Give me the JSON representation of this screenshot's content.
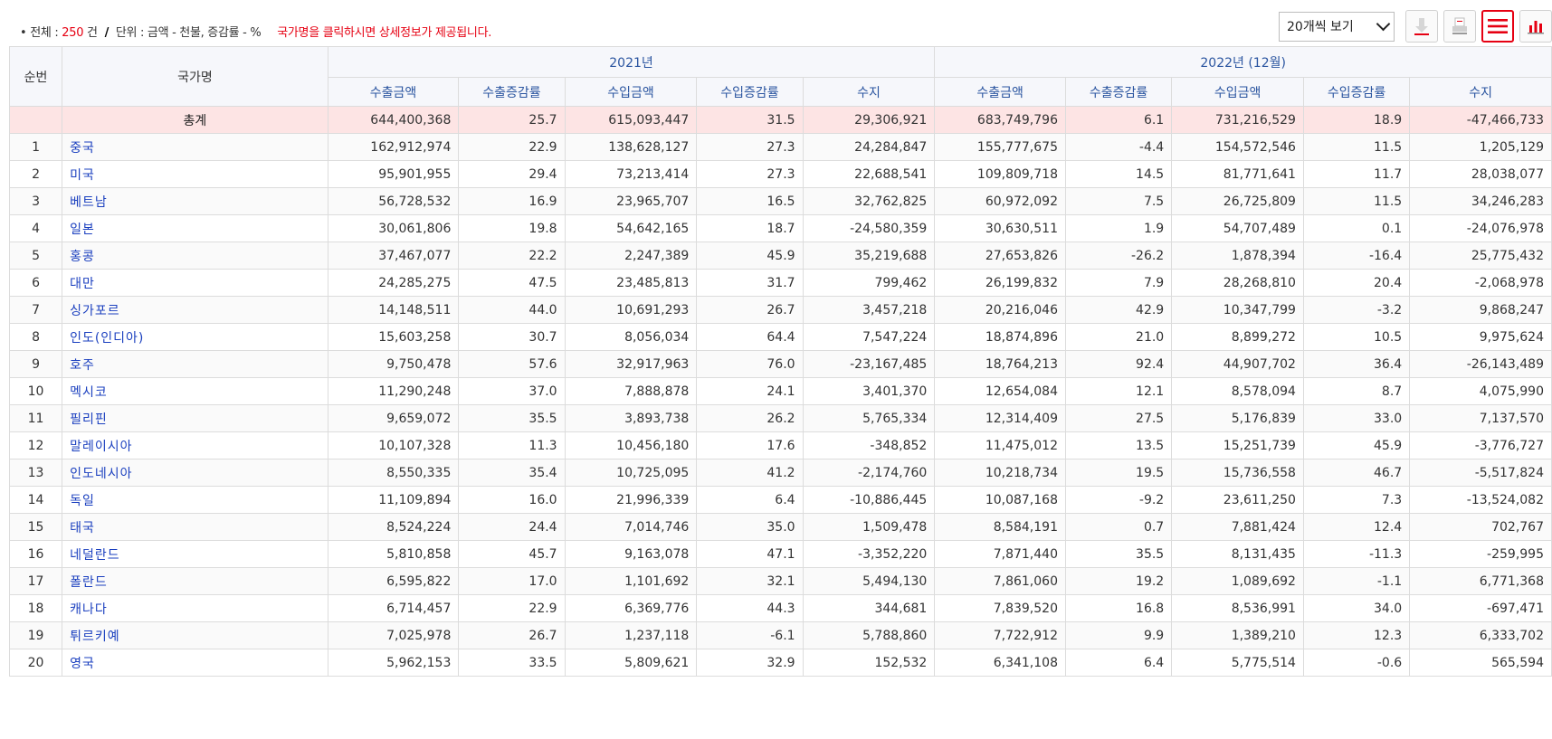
{
  "summary": {
    "bullet": "•",
    "total_label": "전체 : ",
    "total_count": "250",
    "count_unit": " 건",
    "slash": "/",
    "unit_label": "단위 : 금액 - 천불, 증감률 - %",
    "notice": "국가명을 클릭하시면 상세정보가 제공됩니다."
  },
  "controls": {
    "page_size": "20개씩 보기",
    "icons": [
      "download-icon",
      "print-icon",
      "list-view-icon",
      "chart-view-icon"
    ],
    "accent_color": "#e60012"
  },
  "table": {
    "headers": {
      "rank": "순번",
      "country": "국가명",
      "year1": "2021년",
      "year2": "2022년 (12월)",
      "sub": [
        "수출금액",
        "수출증감률",
        "수입금액",
        "수입증감률",
        "수지"
      ]
    },
    "total": {
      "label": "총계",
      "values": [
        "644,400,368",
        "25.7",
        "615,093,447",
        "31.5",
        "29,306,921",
        "683,749,796",
        "6.1",
        "731,216,529",
        "18.9",
        "-47,466,733"
      ]
    },
    "rows": [
      {
        "rank": "1",
        "country": "중국",
        "values": [
          "162,912,974",
          "22.9",
          "138,628,127",
          "27.3",
          "24,284,847",
          "155,777,675",
          "-4.4",
          "154,572,546",
          "11.5",
          "1,205,129"
        ]
      },
      {
        "rank": "2",
        "country": "미국",
        "values": [
          "95,901,955",
          "29.4",
          "73,213,414",
          "27.3",
          "22,688,541",
          "109,809,718",
          "14.5",
          "81,771,641",
          "11.7",
          "28,038,077"
        ]
      },
      {
        "rank": "3",
        "country": "베트남",
        "values": [
          "56,728,532",
          "16.9",
          "23,965,707",
          "16.5",
          "32,762,825",
          "60,972,092",
          "7.5",
          "26,725,809",
          "11.5",
          "34,246,283"
        ]
      },
      {
        "rank": "4",
        "country": "일본",
        "values": [
          "30,061,806",
          "19.8",
          "54,642,165",
          "18.7",
          "-24,580,359",
          "30,630,511",
          "1.9",
          "54,707,489",
          "0.1",
          "-24,076,978"
        ]
      },
      {
        "rank": "5",
        "country": "홍콩",
        "values": [
          "37,467,077",
          "22.2",
          "2,247,389",
          "45.9",
          "35,219,688",
          "27,653,826",
          "-26.2",
          "1,878,394",
          "-16.4",
          "25,775,432"
        ]
      },
      {
        "rank": "6",
        "country": "대만",
        "values": [
          "24,285,275",
          "47.5",
          "23,485,813",
          "31.7",
          "799,462",
          "26,199,832",
          "7.9",
          "28,268,810",
          "20.4",
          "-2,068,978"
        ]
      },
      {
        "rank": "7",
        "country": "싱가포르",
        "values": [
          "14,148,511",
          "44.0",
          "10,691,293",
          "26.7",
          "3,457,218",
          "20,216,046",
          "42.9",
          "10,347,799",
          "-3.2",
          "9,868,247"
        ]
      },
      {
        "rank": "8",
        "country": "인도(인디아)",
        "values": [
          "15,603,258",
          "30.7",
          "8,056,034",
          "64.4",
          "7,547,224",
          "18,874,896",
          "21.0",
          "8,899,272",
          "10.5",
          "9,975,624"
        ]
      },
      {
        "rank": "9",
        "country": "호주",
        "values": [
          "9,750,478",
          "57.6",
          "32,917,963",
          "76.0",
          "-23,167,485",
          "18,764,213",
          "92.4",
          "44,907,702",
          "36.4",
          "-26,143,489"
        ]
      },
      {
        "rank": "10",
        "country": "멕시코",
        "values": [
          "11,290,248",
          "37.0",
          "7,888,878",
          "24.1",
          "3,401,370",
          "12,654,084",
          "12.1",
          "8,578,094",
          "8.7",
          "4,075,990"
        ]
      },
      {
        "rank": "11",
        "country": "필리핀",
        "values": [
          "9,659,072",
          "35.5",
          "3,893,738",
          "26.2",
          "5,765,334",
          "12,314,409",
          "27.5",
          "5,176,839",
          "33.0",
          "7,137,570"
        ]
      },
      {
        "rank": "12",
        "country": "말레이시아",
        "values": [
          "10,107,328",
          "11.3",
          "10,456,180",
          "17.6",
          "-348,852",
          "11,475,012",
          "13.5",
          "15,251,739",
          "45.9",
          "-3,776,727"
        ]
      },
      {
        "rank": "13",
        "country": "인도네시아",
        "values": [
          "8,550,335",
          "35.4",
          "10,725,095",
          "41.2",
          "-2,174,760",
          "10,218,734",
          "19.5",
          "15,736,558",
          "46.7",
          "-5,517,824"
        ]
      },
      {
        "rank": "14",
        "country": "독일",
        "values": [
          "11,109,894",
          "16.0",
          "21,996,339",
          "6.4",
          "-10,886,445",
          "10,087,168",
          "-9.2",
          "23,611,250",
          "7.3",
          "-13,524,082"
        ]
      },
      {
        "rank": "15",
        "country": "태국",
        "values": [
          "8,524,224",
          "24.4",
          "7,014,746",
          "35.0",
          "1,509,478",
          "8,584,191",
          "0.7",
          "7,881,424",
          "12.4",
          "702,767"
        ]
      },
      {
        "rank": "16",
        "country": "네덜란드",
        "values": [
          "5,810,858",
          "45.7",
          "9,163,078",
          "47.1",
          "-3,352,220",
          "7,871,440",
          "35.5",
          "8,131,435",
          "-11.3",
          "-259,995"
        ]
      },
      {
        "rank": "17",
        "country": "폴란드",
        "values": [
          "6,595,822",
          "17.0",
          "1,101,692",
          "32.1",
          "5,494,130",
          "7,861,060",
          "19.2",
          "1,089,692",
          "-1.1",
          "6,771,368"
        ]
      },
      {
        "rank": "18",
        "country": "캐나다",
        "values": [
          "6,714,457",
          "22.9",
          "6,369,776",
          "44.3",
          "344,681",
          "7,839,520",
          "16.8",
          "8,536,991",
          "34.0",
          "-697,471"
        ]
      },
      {
        "rank": "19",
        "country": "튀르키예",
        "values": [
          "7,025,978",
          "26.7",
          "1,237,118",
          "-6.1",
          "5,788,860",
          "7,722,912",
          "9.9",
          "1,389,210",
          "12.3",
          "6,333,702"
        ]
      },
      {
        "rank": "20",
        "country": "영국",
        "values": [
          "5,962,153",
          "33.5",
          "5,809,621",
          "32.9",
          "152,532",
          "6,341,108",
          "6.4",
          "5,775,514",
          "-0.6",
          "565,594"
        ]
      }
    ]
  }
}
